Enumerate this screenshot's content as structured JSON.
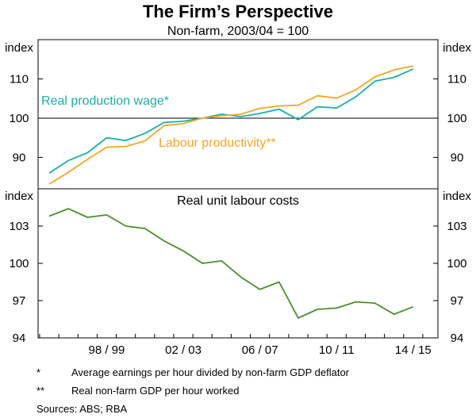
{
  "chart_data": {
    "type": "line",
    "title": "The Firm’s Perspective",
    "subtitle": "Non-farm, 2003/04 = 100",
    "x_tick_labels": [
      "98 / 99",
      "02 / 03",
      "06 / 07",
      "10 / 11",
      "14 / 15"
    ],
    "x_tick_positions": [
      3,
      7,
      11,
      15,
      19
    ],
    "panels": [
      {
        "name": "top",
        "ylabel": "index",
        "ylim": [
          82,
          120
        ],
        "yticks": [
          90,
          100,
          110
        ],
        "reference_line": 100,
        "series": [
          {
            "name": "Real production wage",
            "label": "Real production wage*",
            "color": "#1ab0a4",
            "x": [
              0,
              1,
              2,
              3,
              4,
              5,
              6,
              7,
              8,
              9,
              10,
              11,
              12,
              13,
              14,
              15,
              16,
              17,
              18,
              19
            ],
            "values": [
              86,
              89.2,
              91.2,
              95,
              94.3,
              96.1,
              98.9,
              99.2,
              100,
              101,
              100.4,
              101.2,
              102.3,
              99.6,
              102.9,
              102.6,
              105.4,
              109.4,
              110.4,
              112.5
            ]
          },
          {
            "name": "Labour productivity",
            "label": "Labour productivity**",
            "color": "#f5a623",
            "x": [
              0,
              1,
              2,
              3,
              4,
              5,
              6,
              7,
              8,
              9,
              10,
              11,
              12,
              13,
              14,
              15,
              16,
              17,
              18,
              19
            ],
            "values": [
              83.2,
              86.2,
              89.5,
              92.6,
              92.8,
              94.2,
              98.1,
              98.6,
              100,
              100.6,
              101,
              102.5,
              103.1,
              103.3,
              105.7,
              105.1,
              107.2,
              110.5,
              112.3,
              113.3
            ]
          }
        ]
      },
      {
        "name": "bottom",
        "title": "Real unit labour costs",
        "ylabel": "index",
        "ylim": [
          94,
          106
        ],
        "yticks": [
          94,
          97,
          100,
          103
        ],
        "series": [
          {
            "name": "Real unit labour costs",
            "color": "#4a8f2e",
            "x": [
              0,
              1,
              2,
              3,
              4,
              5,
              6,
              7,
              8,
              9,
              10,
              11,
              12,
              13,
              14,
              15,
              16,
              17,
              18,
              19
            ],
            "values": [
              103.8,
              104.4,
              103.7,
              103.9,
              103.0,
              102.8,
              101.8,
              101.0,
              100.0,
              100.2,
              98.9,
              97.9,
              98.5,
              95.6,
              96.3,
              96.4,
              96.9,
              96.8,
              95.9,
              96.5
            ]
          }
        ]
      }
    ]
  },
  "footnotes": [
    {
      "mark": "*",
      "text": "Average earnings per hour divided by non-farm GDP deflator"
    },
    {
      "mark": "**",
      "text": "Real non-farm GDP per hour worked"
    }
  ],
  "sources": "Sources:  ABS; RBA"
}
